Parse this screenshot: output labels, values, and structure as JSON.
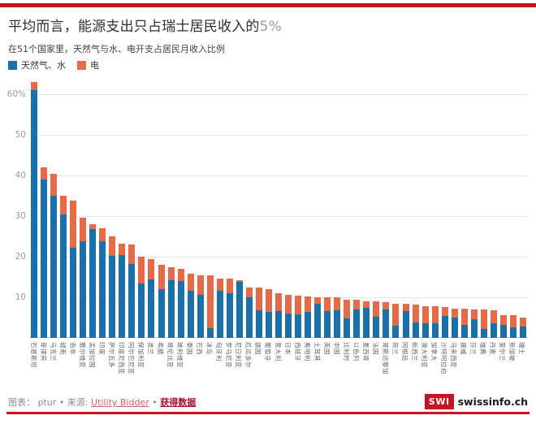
{
  "colors": {
    "brand_red": "#c31622",
    "gas_blue": "#1c70a9",
    "elec_orange": "#e56a47"
  },
  "header": {
    "title_prefix": "平均而言，能源支出只占瑞士居民收入的",
    "title_suffix": "5%",
    "subtitle": "在51个国家里，天然气与水、电开支占居民月收入比例"
  },
  "legend": [
    {
      "label": "天然气、水",
      "color": "#1c70a9"
    },
    {
      "label": "电",
      "color": "#e56a47"
    }
  ],
  "chart_data": {
    "type": "bar",
    "stacked": true,
    "unit": "%",
    "title": "平均而言，能源支出只占瑞士居民收入的5%",
    "subtitle": "在51个国家里，天然气与水、电开支占居民月收入比例",
    "ylim": [
      0,
      63
    ],
    "yticks": [
      10,
      20,
      30,
      40,
      50,
      60
    ],
    "ytick_top_label": "60%",
    "grid": true,
    "legend_position": "top-left",
    "categories": [
      "巴基斯坦",
      "菲律宾",
      "乌克兰",
      "越南",
      "南非",
      "塞尔维亚",
      "孟加拉国",
      "印度",
      "萨尔瓦多",
      "印度尼西亚",
      "阿尔巴尼亚",
      "保加利亚",
      "波兰",
      "希腊",
      "哥伦比亚",
      "玻利维亚",
      "泰国",
      "巴西",
      "冰岛",
      "匈牙利",
      "罗马尼亚",
      "尼日利亚",
      "厄瓜多尔",
      "德国",
      "葡萄牙",
      "意大利",
      "日本",
      "西班牙",
      "奥地利",
      "土耳其",
      "英国",
      "中国",
      "比利时",
      "以色列",
      "墨西哥",
      "法国",
      "哥斯达黎加",
      "荷兰",
      "阿根廷",
      "新西兰",
      "澳大利亚",
      "加拿大",
      "沙特阿拉伯",
      "马来西亚",
      "挪威",
      "芬兰",
      "瑞典",
      "丹麦",
      "爱尔兰",
      "新加坡",
      "瑞士"
    ],
    "series": [
      {
        "name": "天然气、水",
        "color": "#1c70a9",
        "values": [
          61,
          39,
          35,
          30.4,
          22.2,
          23.8,
          26.9,
          23.9,
          20.2,
          20.5,
          18.2,
          13.4,
          14.4,
          12,
          14.3,
          14,
          11.7,
          10.7,
          2.5,
          11.7,
          11,
          13.9,
          10,
          6.8,
          6.5,
          6.7,
          6,
          5.8,
          6.5,
          8.5,
          6.7,
          6.9,
          4.8,
          7,
          7.5,
          5.3,
          7,
          3.1,
          6.6,
          3.9,
          3.7,
          3.7,
          5.5,
          5,
          3.3,
          4.7,
          2.3,
          3.7,
          3.3,
          2.7,
          2.9
        ]
      },
      {
        "name": "电",
        "color": "#e56a47",
        "values": [
          2,
          3,
          5.5,
          4.6,
          11.6,
          5.9,
          1.1,
          3.2,
          4.8,
          2.7,
          4.8,
          6.7,
          5,
          6,
          3.2,
          3.1,
          4.2,
          4.8,
          13,
          3,
          3.7,
          0.3,
          2.5,
          5.6,
          5.5,
          4.4,
          4.7,
          4.6,
          3.7,
          1.6,
          3.4,
          3.1,
          4.7,
          2.5,
          1.6,
          3.7,
          1.8,
          5.4,
          1.9,
          4.4,
          4.2,
          4.2,
          2.2,
          2.3,
          4,
          2.3,
          4.7,
          3.1,
          2.4,
          3,
          2.1
        ]
      }
    ]
  },
  "footer": {
    "prefix": "图表：",
    "author": "ptur",
    "sep1": "•",
    "source_label": "来源:",
    "source_link": "Utility Bidder",
    "sep2": "•",
    "data_link": "获得数据",
    "logo_text": "SWI",
    "brand": "swissinfo.ch"
  }
}
